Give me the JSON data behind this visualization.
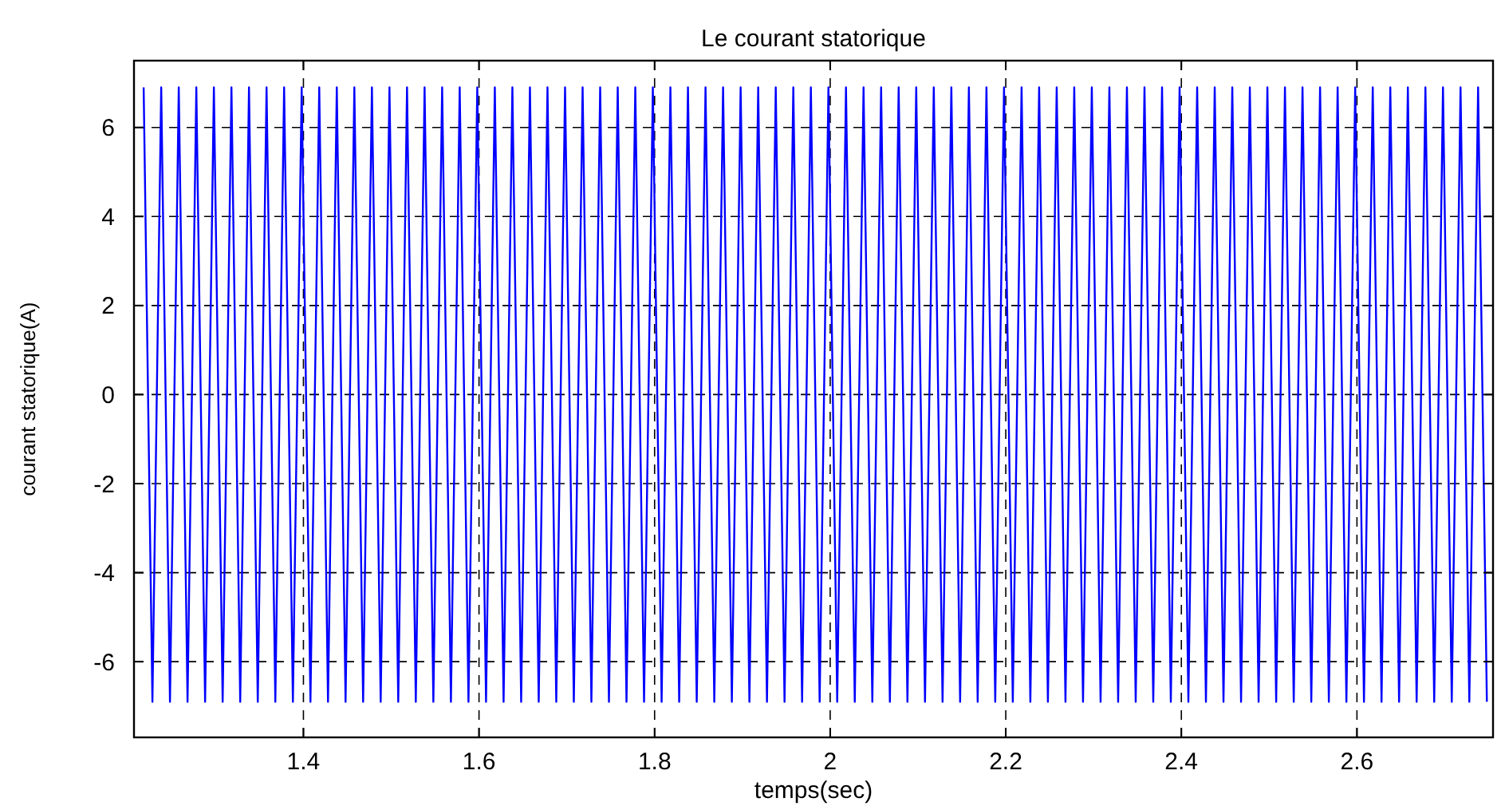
{
  "chart_data": {
    "type": "line",
    "title": "Le courant statorique",
    "xlabel": "temps(sec)",
    "ylabel": "courant statorique(A)",
    "xlim": [
      1.207,
      2.755
    ],
    "xticks": [
      1.4,
      1.6,
      1.8,
      2,
      2.2,
      2.4,
      2.6
    ],
    "ylim": [
      -7.7,
      7.5
    ],
    "yticks": [
      -6,
      -4,
      -2,
      0,
      2,
      4,
      6
    ],
    "grid": true,
    "marker": "none",
    "line_style": "solid",
    "series": [
      {
        "color": "#0000ff",
        "x": [
          1.218,
          1.228,
          1.238,
          1.248,
          1.258,
          1.268,
          1.278,
          1.288,
          1.298,
          1.308,
          1.318,
          1.328,
          1.338,
          1.348,
          1.358,
          1.368,
          1.378,
          1.388,
          1.398,
          1.408,
          1.418,
          1.428,
          1.438,
          1.448,
          1.458,
          1.468,
          1.478,
          1.488,
          1.498,
          1.508,
          1.518,
          1.528,
          1.538,
          1.548,
          1.558,
          1.568,
          1.578,
          1.588,
          1.598,
          1.608,
          1.618,
          1.628,
          1.638,
          1.648,
          1.658,
          1.668,
          1.678,
          1.688,
          1.698,
          1.708,
          1.718,
          1.728,
          1.738,
          1.748,
          1.758,
          1.768,
          1.778,
          1.788,
          1.798,
          1.808,
          1.818,
          1.828,
          1.838,
          1.848,
          1.858,
          1.868,
          1.878,
          1.888,
          1.898,
          1.908,
          1.918,
          1.928,
          1.938,
          1.948,
          1.958,
          1.968,
          1.978,
          1.988,
          1.998,
          2.008,
          2.018,
          2.028,
          2.038,
          2.048,
          2.058,
          2.068,
          2.078,
          2.088,
          2.098,
          2.108,
          2.118,
          2.128,
          2.138,
          2.148,
          2.158,
          2.168,
          2.178,
          2.188,
          2.198,
          2.208,
          2.218,
          2.228,
          2.238,
          2.248,
          2.258,
          2.268,
          2.278,
          2.288,
          2.298,
          2.308,
          2.318,
          2.328,
          2.338,
          2.348,
          2.358,
          2.368,
          2.378,
          2.388,
          2.398,
          2.408,
          2.418,
          2.428,
          2.438,
          2.448,
          2.458,
          2.468,
          2.478,
          2.488,
          2.498,
          2.508,
          2.518,
          2.528,
          2.538,
          2.548,
          2.558,
          2.568,
          2.578,
          2.588,
          2.598,
          2.608,
          2.618,
          2.628,
          2.638,
          2.648,
          2.658,
          2.668,
          2.678,
          2.688,
          2.698,
          2.708,
          2.718,
          2.728,
          2.738,
          2.748
        ],
        "values": [
          6.9,
          -6.9,
          6.9,
          -6.9,
          6.9,
          -6.9,
          6.9,
          -6.9,
          6.9,
          -6.9,
          6.9,
          -6.9,
          6.9,
          -6.9,
          6.9,
          -6.9,
          6.9,
          -6.9,
          6.9,
          -6.9,
          6.9,
          -6.9,
          6.9,
          -6.9,
          6.9,
          -6.9,
          6.9,
          -6.9,
          6.9,
          -6.9,
          6.9,
          -6.9,
          6.9,
          -6.9,
          6.9,
          -6.9,
          6.9,
          -6.9,
          6.9,
          -6.9,
          6.9,
          -6.9,
          6.9,
          -6.9,
          6.9,
          -6.9,
          6.9,
          -6.9,
          6.9,
          -6.9,
          6.9,
          -6.9,
          6.9,
          -6.9,
          6.9,
          -6.9,
          6.9,
          -6.9,
          6.9,
          -6.9,
          6.9,
          -6.9,
          6.9,
          -6.9,
          6.9,
          -6.9,
          6.9,
          -6.9,
          6.9,
          -6.9,
          6.9,
          -6.9,
          6.9,
          -6.9,
          6.9,
          -6.9,
          6.9,
          -6.9,
          6.9,
          -6.9,
          6.9,
          -6.9,
          6.9,
          -6.9,
          6.9,
          -6.9,
          6.9,
          -6.9,
          6.9,
          -6.9,
          6.9,
          -6.9,
          6.9,
          -6.9,
          6.9,
          -6.9,
          6.9,
          -6.9,
          6.9,
          -6.9,
          6.9,
          -6.9,
          6.9,
          -6.9,
          6.9,
          -6.9,
          6.9,
          -6.9,
          6.9,
          -6.9,
          6.9,
          -6.9,
          6.9,
          -6.9,
          6.9,
          -6.9,
          6.9,
          -6.9,
          6.9,
          -6.9,
          6.9,
          -6.9,
          6.9,
          -6.9,
          6.9,
          -6.9,
          6.9,
          -6.9,
          6.9,
          -6.9,
          6.9,
          -6.9,
          6.9,
          -6.9,
          6.9,
          -6.9,
          6.9,
          -6.9,
          6.9,
          -6.9,
          6.9,
          -6.9,
          6.9,
          -6.9,
          6.9,
          -6.9,
          6.9,
          -6.9,
          6.9,
          -6.9,
          6.9,
          -6.9,
          6.9,
          -6.9
        ]
      }
    ]
  }
}
